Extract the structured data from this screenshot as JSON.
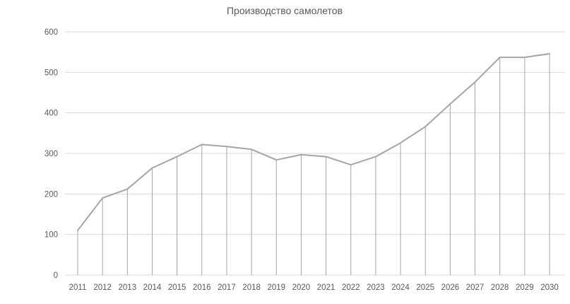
{
  "chart_data": {
    "type": "line",
    "title": "Производство самолетов",
    "xlabel": "",
    "ylabel": "",
    "categories": [
      "2011",
      "2012",
      "2013",
      "2014",
      "2015",
      "2016",
      "2017",
      "2018",
      "2019",
      "2020",
      "2021",
      "2022",
      "2023",
      "2024",
      "2025",
      "2026",
      "2027",
      "2028",
      "2029",
      "2030"
    ],
    "values": [
      110,
      190,
      212,
      264,
      292,
      322,
      317,
      310,
      284,
      297,
      292,
      272,
      292,
      326,
      366,
      422,
      476,
      537,
      537,
      546
    ],
    "ylim": [
      0,
      600
    ],
    "yticks": [
      0,
      100,
      200,
      300,
      400,
      500,
      600
    ],
    "grid": true,
    "drop_lines": true,
    "legend": "none",
    "colors": {
      "line": "#a5a5a5",
      "drop": "#a5a5a5",
      "grid": "#d9d9d9",
      "text": "#595959"
    }
  }
}
